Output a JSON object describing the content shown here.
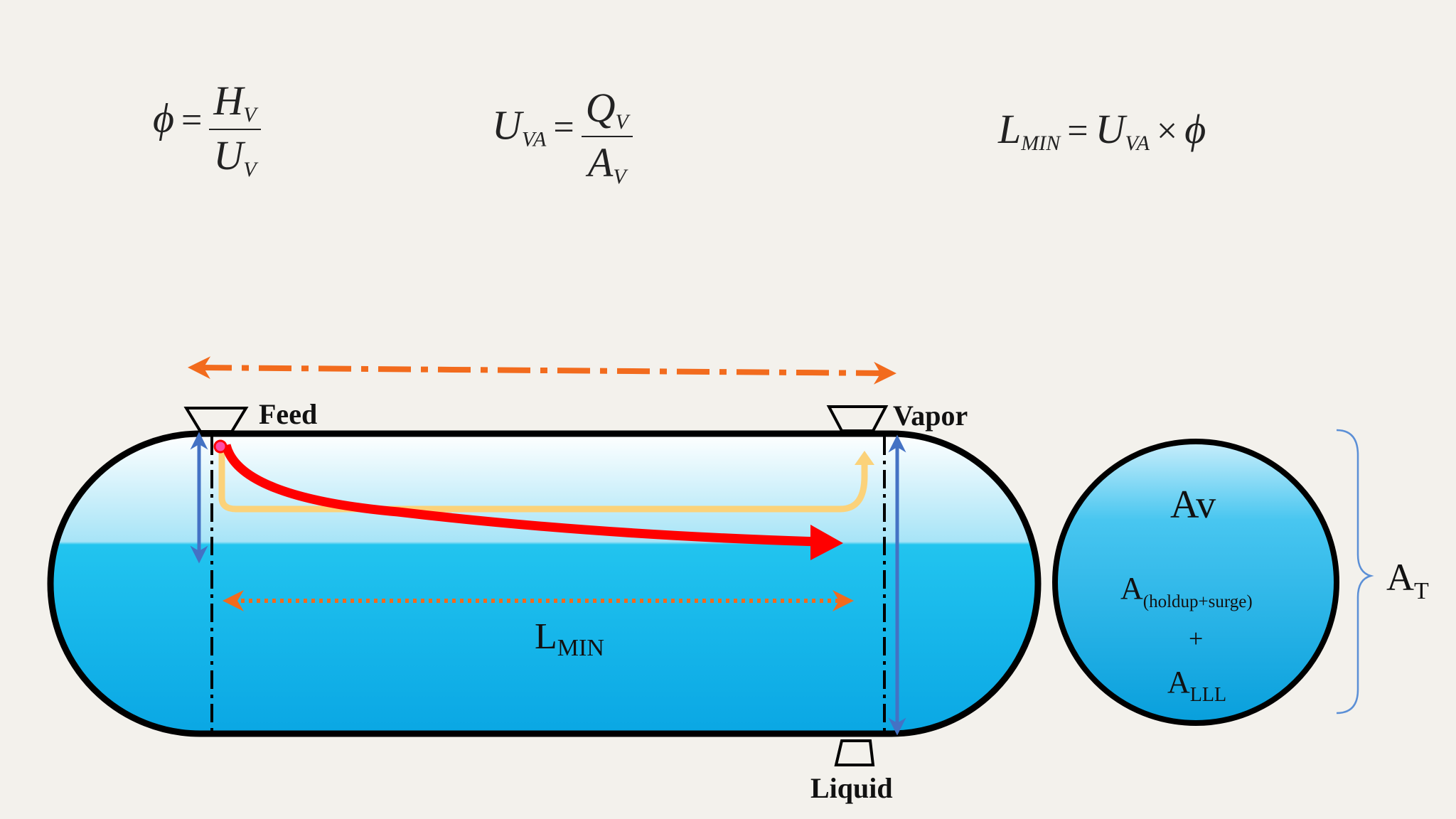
{
  "equations": {
    "phi": {
      "lhs": "ϕ",
      "eq": "=",
      "num_main": "H",
      "num_sub": "V",
      "den_main": "U",
      "den_sub": "V"
    },
    "uva": {
      "lhs_main": "U",
      "lhs_sub": "VA",
      "eq": "=",
      "num_main": "Q",
      "num_sub": "V",
      "den_main": "A",
      "den_sub": "V"
    },
    "lmin": {
      "lhs_main": "L",
      "lhs_sub": "MIN",
      "eq": "=",
      "r1_main": "U",
      "r1_sub": "VA",
      "times": "×",
      "r2": "ϕ"
    }
  },
  "labels": {
    "feed": "Feed",
    "vapor": "Vapor",
    "liquid": "Liquid",
    "lmin_main": "L",
    "lmin_sub": "MIN",
    "av": "Av",
    "a_holdup_main": "A",
    "a_holdup_sub": "(holdup+surge)",
    "plus": "+",
    "a_lll_main": "A",
    "a_lll_sub": "LLL",
    "at_main": "A",
    "at_sub": "T"
  },
  "colors": {
    "background": "#f3f1ec",
    "vessel_outline": "#000000",
    "vapor_top": "#ffffff",
    "vapor_bottom": "#a7e4f7",
    "liquid_top": "#1cc0ee",
    "liquid_bottom": "#0aa9e6",
    "orange_arrow": "#f26b1d",
    "red_arrow": "#ff0000",
    "yellow_path": "#fbd27a",
    "blue_arrow": "#4472c4",
    "brace": "#5b8fd6"
  }
}
